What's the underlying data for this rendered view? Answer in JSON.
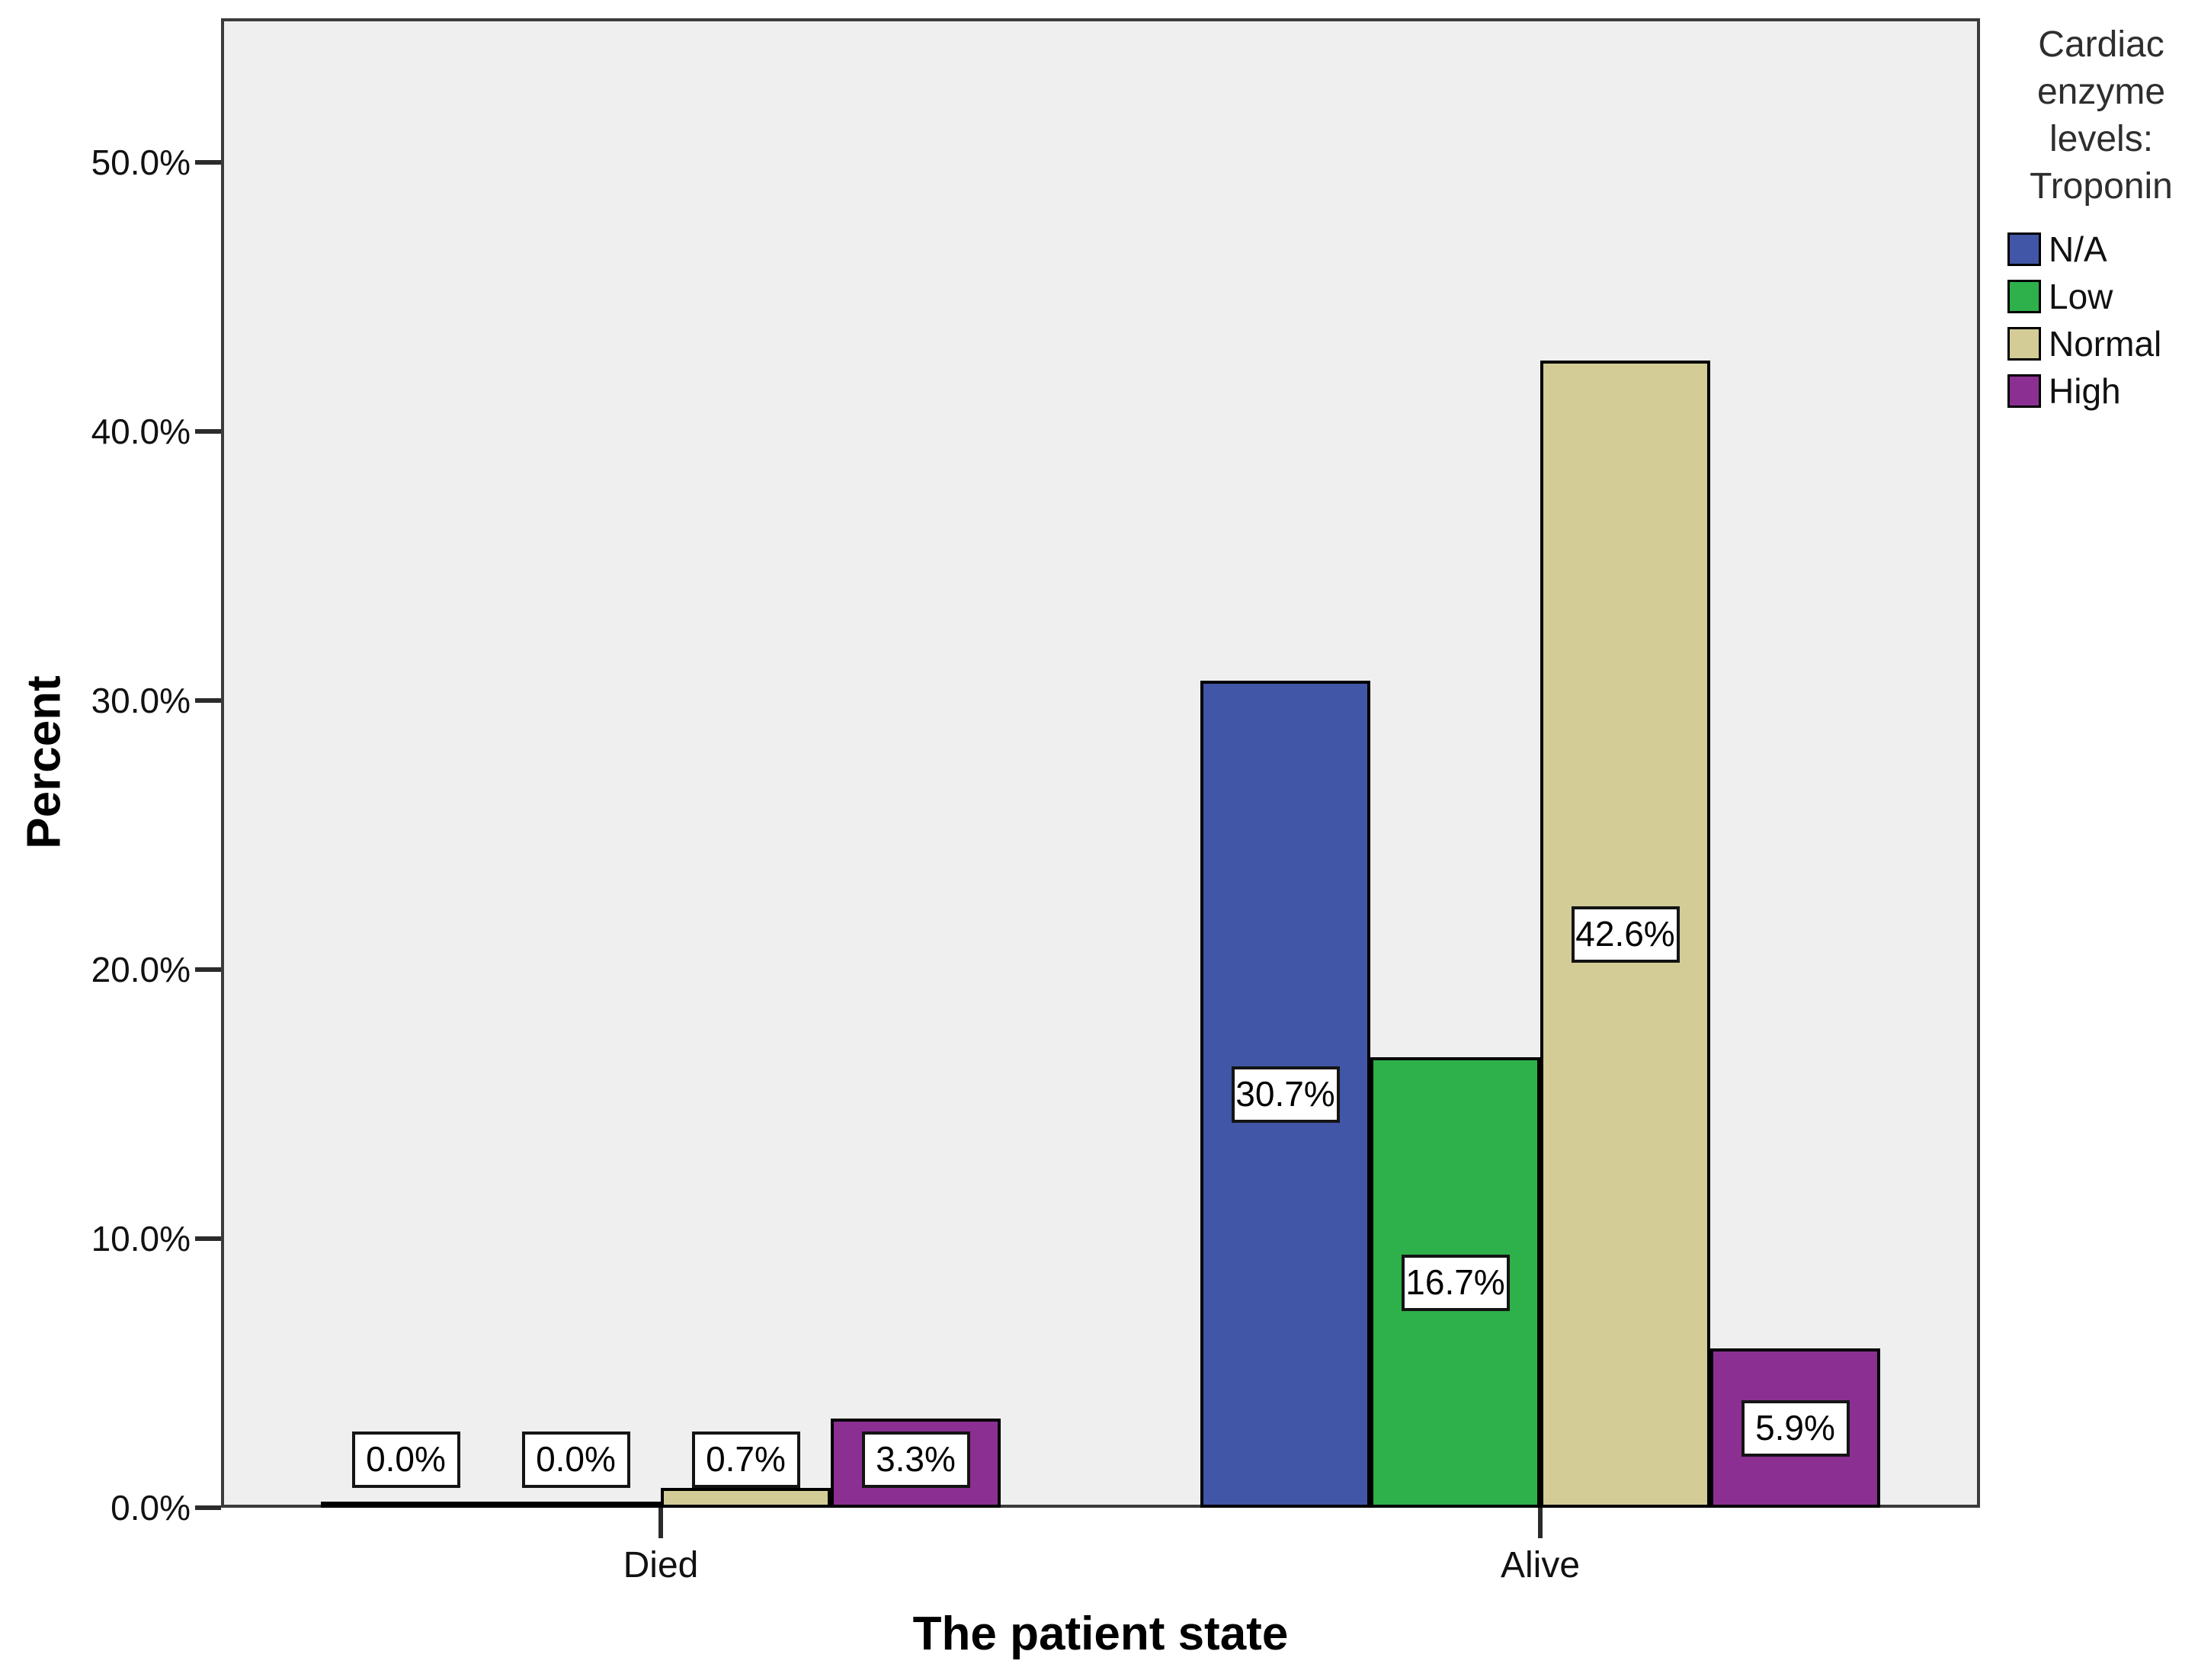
{
  "figure": {
    "background": "#ffffff",
    "plot_background": "#f0efef",
    "frame_color": "#3b3b3b",
    "bar_outline_color": "#000000",
    "label_box_bg": "#ffffff"
  },
  "chart_data": {
    "type": "bar",
    "title": "",
    "xlabel": "The patient state",
    "ylabel": "Percent",
    "categories": [
      "Died",
      "Alive"
    ],
    "series": [
      {
        "name": "N/A",
        "color": "#4156a6",
        "values": [
          0.0,
          30.7
        ],
        "labels": [
          "0.0%",
          "30.7%"
        ]
      },
      {
        "name": "Low",
        "color": "#2eb04a",
        "values": [
          0.0,
          16.7
        ],
        "labels": [
          "0.0%",
          "16.7%"
        ]
      },
      {
        "name": "Normal",
        "color": "#d3cc96",
        "values": [
          0.7,
          42.6
        ],
        "labels": [
          "0.7%",
          "42.6%"
        ]
      },
      {
        "name": "High",
        "color": "#8b3092",
        "values": [
          3.3,
          5.9
        ],
        "labels": [
          "3.3%",
          "5.9%"
        ]
      }
    ],
    "yticks": [
      "0.0%",
      "10.0%",
      "20.0%",
      "30.0%",
      "40.0%",
      "50.0%"
    ],
    "ylim": [
      0,
      55
    ],
    "grid": false,
    "legend_title": "Cardiac enzyme levels: Troponin",
    "legend_position": "top-right"
  }
}
